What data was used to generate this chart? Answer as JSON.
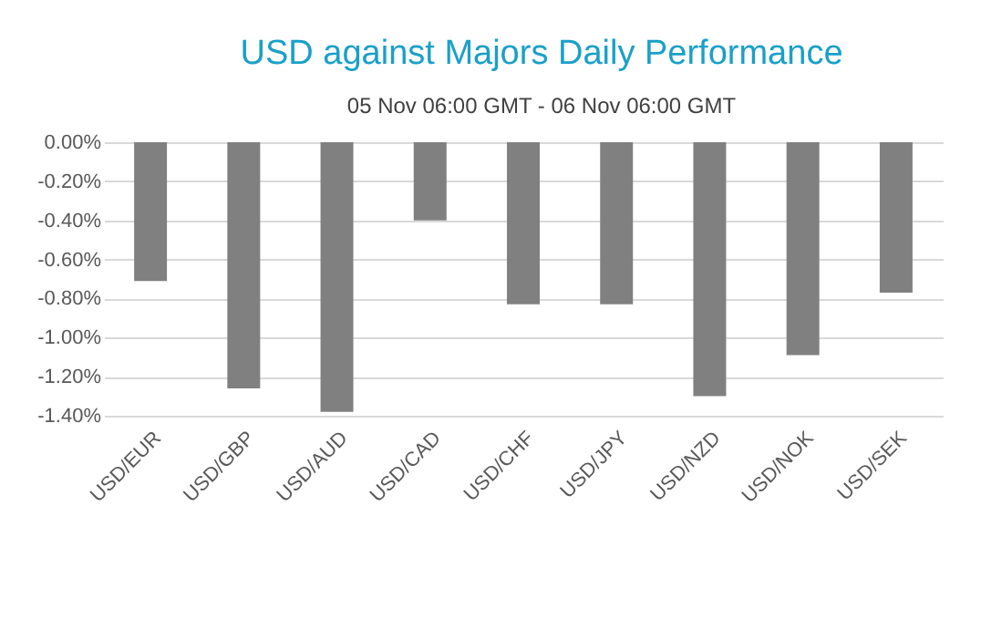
{
  "chart_data": {
    "type": "bar",
    "title": "USD against Majors Daily Performance",
    "subtitle": "05 Nov 06:00 GMT -  06 Nov  06:00 GMT",
    "categories": [
      "USD/EUR",
      "USD/GBP",
      "USD/AUD",
      "USD/CAD",
      "USD/CHF",
      "USD/JPY",
      "USD/NZD",
      "USD/NOK",
      "USD/SEK"
    ],
    "values": [
      -0.71,
      -1.26,
      -1.38,
      -0.4,
      -0.83,
      -0.83,
      -1.3,
      -1.09,
      -0.77
    ],
    "color": "#808080",
    "ylim": [
      -1.4,
      0
    ],
    "yticks": [
      {
        "value": 0,
        "label": "0.00%"
      },
      {
        "value": -0.2,
        "label": "-0.20%"
      },
      {
        "value": -0.4,
        "label": "-0.40%"
      },
      {
        "value": -0.6,
        "label": "-0.60%"
      },
      {
        "value": -0.8,
        "label": "-0.80%"
      },
      {
        "value": -1,
        "label": "-1.00%"
      },
      {
        "value": -1.2,
        "label": "-1.20%"
      },
      {
        "value": -1.4,
        "label": "-1.40%"
      }
    ],
    "grid": true
  }
}
